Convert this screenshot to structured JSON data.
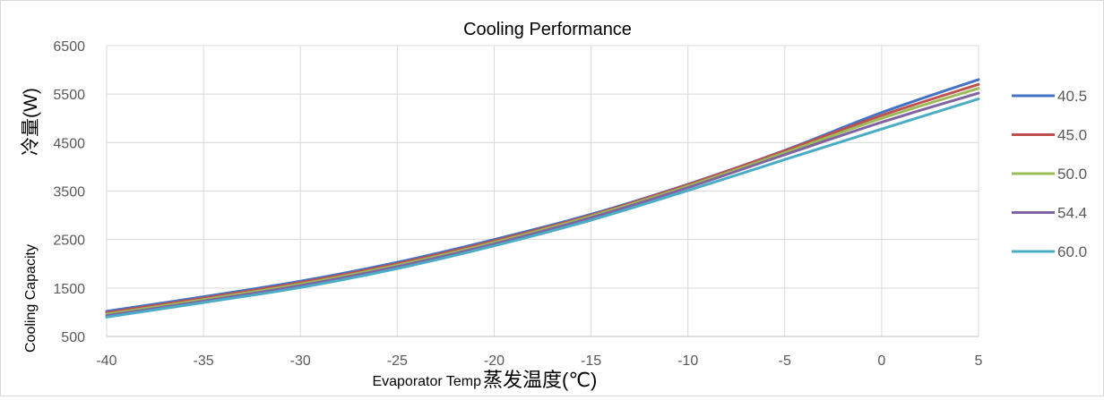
{
  "chart_data": {
    "type": "line",
    "title": "Cooling Performance",
    "xlabel_en": "Evaporator Temp",
    "xlabel_cn": "蒸发温度(℃)",
    "ylabel_en": "Cooling Capacity",
    "ylabel_cn": "冷量(W)",
    "xlim": [
      -40,
      5
    ],
    "ylim": [
      500,
      6500
    ],
    "x_ticks": [
      "-40",
      "-35",
      "-30",
      "-25",
      "-20",
      "-15",
      "-10",
      "-5",
      "0",
      "5"
    ],
    "y_ticks": [
      "500",
      "1500",
      "2500",
      "3500",
      "4500",
      "5500",
      "6500"
    ],
    "grid": true,
    "legend_position": "right",
    "x": [
      -40,
      -35,
      -30,
      -25,
      -20,
      -15,
      -10,
      -5,
      0,
      5
    ],
    "series": [
      {
        "name": "40.5",
        "color": "#4472C4",
        "values": [
          1020,
          1320,
          1640,
          2030,
          2500,
          3020,
          3640,
          4340,
          5120,
          5800
        ]
      },
      {
        "name": "45.0",
        "color": "#C0504D",
        "values": [
          990,
          1290,
          1610,
          2000,
          2470,
          3000,
          3630,
          4330,
          5060,
          5700
        ]
      },
      {
        "name": "50.0",
        "color": "#9BBB59",
        "values": [
          960,
          1260,
          1580,
          1970,
          2440,
          2980,
          3600,
          4290,
          5000,
          5620
        ]
      },
      {
        "name": "54.4",
        "color": "#8064A2",
        "values": [
          930,
          1230,
          1550,
          1940,
          2410,
          2950,
          3570,
          4250,
          4920,
          5520
        ]
      },
      {
        "name": "60.0",
        "color": "#4BACC6",
        "values": [
          900,
          1200,
          1510,
          1900,
          2370,
          2900,
          3510,
          4150,
          4780,
          5400
        ]
      }
    ]
  }
}
